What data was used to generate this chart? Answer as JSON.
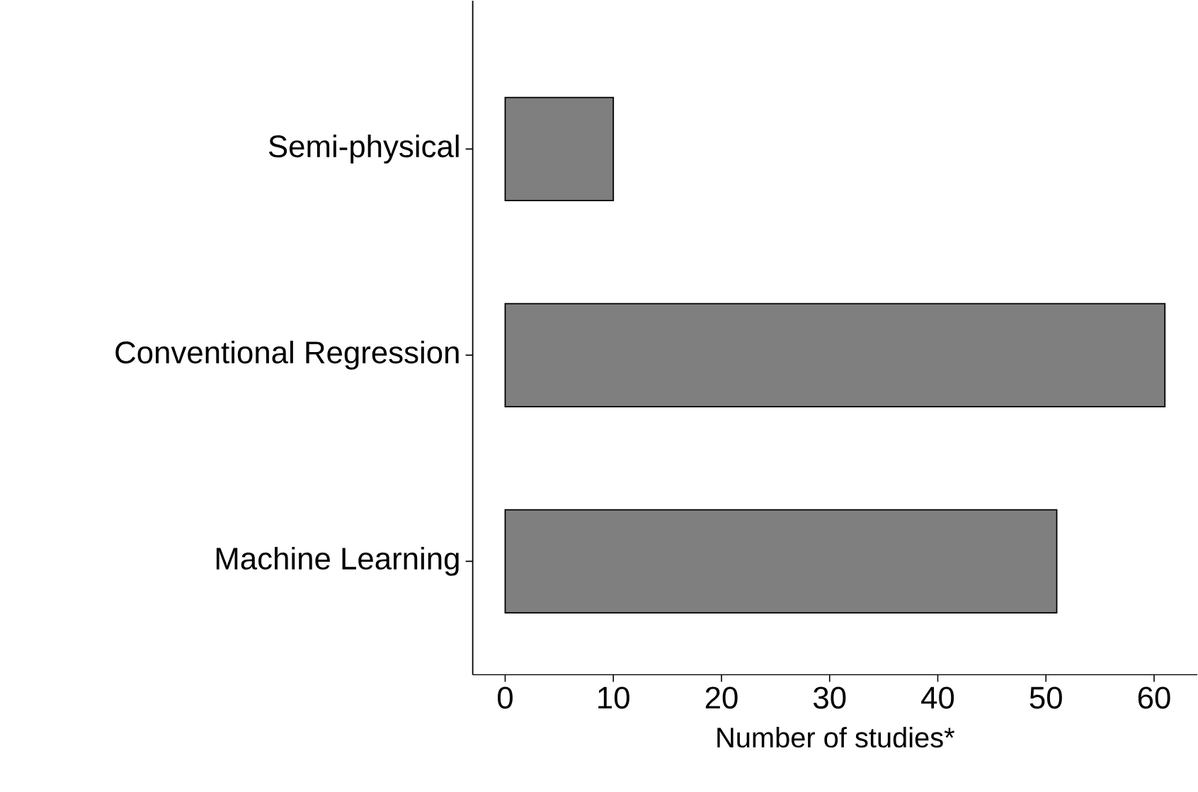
{
  "chart_data": {
    "type": "bar",
    "orientation": "horizontal",
    "categories": [
      "Semi-physical",
      "Conventional Regression",
      "Machine Learning"
    ],
    "values": [
      10,
      61,
      51
    ],
    "color": "#7f7f7f",
    "xlabel": "Number of studies*",
    "xlim": [
      -3,
      64
    ],
    "xticks": [
      0,
      10,
      20,
      30,
      40,
      50,
      60
    ]
  }
}
